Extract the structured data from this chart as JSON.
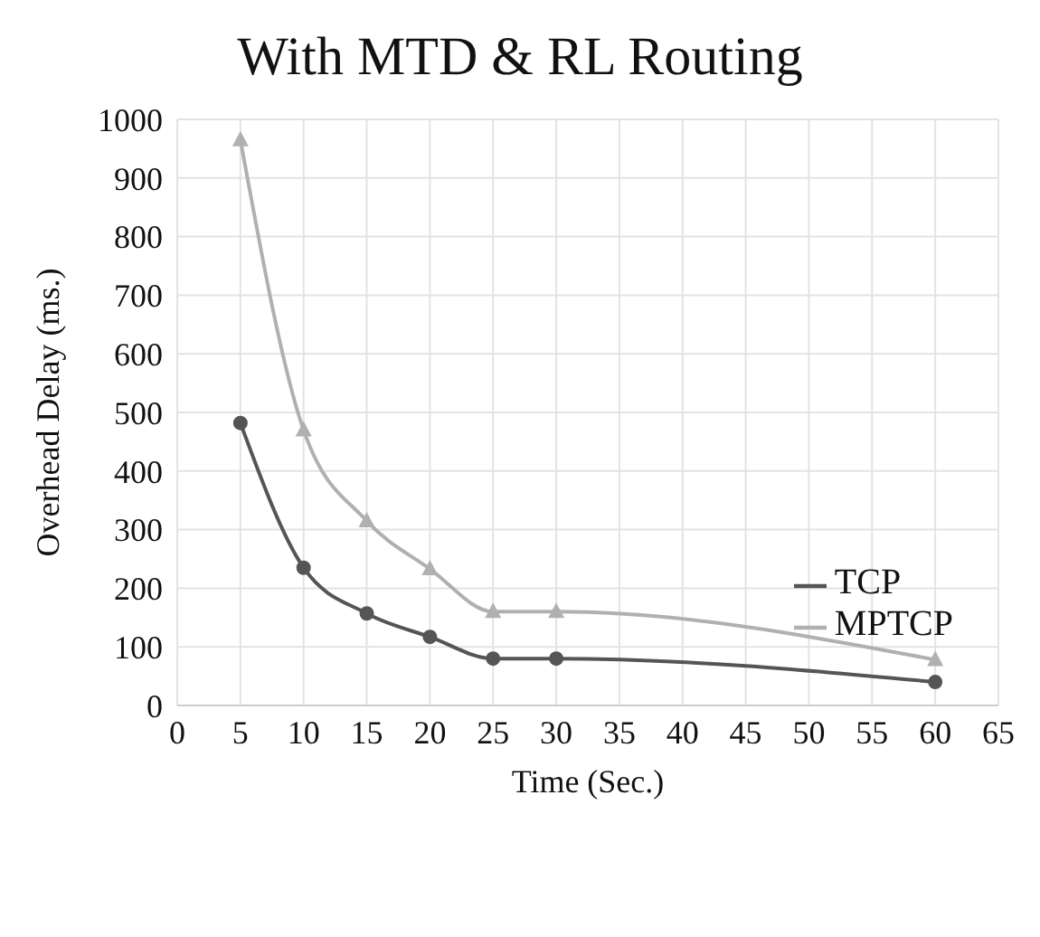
{
  "chart_data": {
    "type": "line",
    "title": "With MTD & RL Routing",
    "xlabel": "Time (Sec.)",
    "ylabel": "Overhead Delay (ms.)",
    "x": [
      5,
      10,
      15,
      20,
      25,
      30,
      60
    ],
    "series": [
      {
        "name": "TCP",
        "color": "#555555",
        "marker": "circle",
        "values": [
          482,
          235,
          157,
          117,
          80,
          80,
          40
        ]
      },
      {
        "name": "MPTCP",
        "color": "#b0b0b0",
        "marker": "triangle",
        "values": [
          965,
          470,
          315,
          233,
          160,
          160,
          78
        ]
      }
    ],
    "xlim": [
      0,
      65
    ],
    "xticks": [
      0,
      5,
      10,
      15,
      20,
      25,
      30,
      35,
      40,
      45,
      50,
      55,
      60,
      65
    ],
    "ylim": [
      0,
      1000
    ],
    "yticks": [
      0,
      100,
      200,
      300,
      400,
      500,
      600,
      700,
      800,
      900,
      1000
    ],
    "grid": true,
    "legend": "right"
  }
}
